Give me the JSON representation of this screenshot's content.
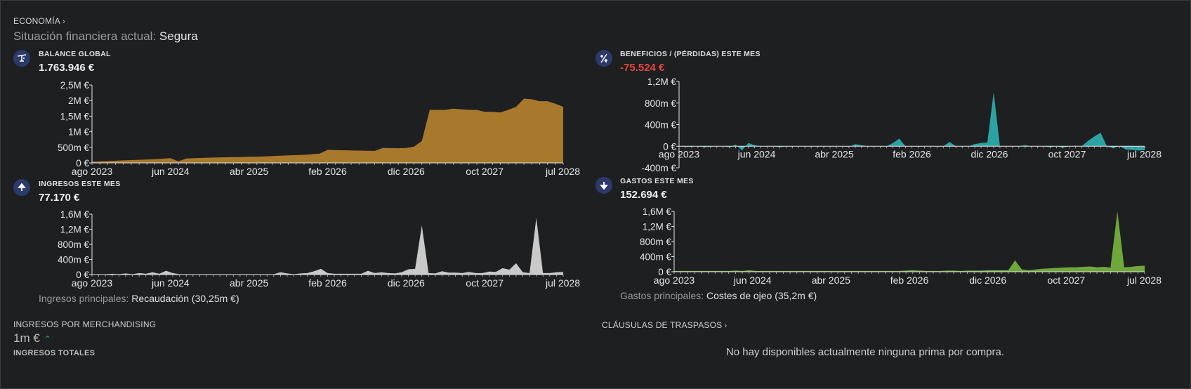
{
  "header": {
    "section_label": "ECONOMÍA",
    "status_label": "Situación financiera actual:",
    "status_value": "Segura"
  },
  "cards": {
    "balance": {
      "title": "BALANCE GLOBAL",
      "value": "1.763.946 €",
      "icon": "balance-scale-icon"
    },
    "profit": {
      "title": "BENEFICIOS / (PÉRDIDAS) ESTE MES",
      "value": "-75.524 €",
      "icon": "plus-minus-icon"
    },
    "income": {
      "title": "INGRESOS ESTE MES",
      "value": "77.170 €",
      "icon": "arrow-up-icon",
      "note_label": "Ingresos principales:",
      "note_value": "Recaudación (30,25m €)"
    },
    "expenses": {
      "title": "GASTOS ESTE MES",
      "value": "152.694 €",
      "icon": "arrow-down-icon",
      "note_label": "Gastos principales:",
      "note_value": "Costes de ojeo (35,2m €)"
    }
  },
  "merchandising": {
    "title": "INGRESOS POR MERCHANDISING",
    "value": "1m €",
    "trend": "up",
    "footer": "INGRESOS TOTALES"
  },
  "transfers": {
    "title": "CLÁUSULAS DE TRASPASOS",
    "empty_message": "No hay disponibles actualmente ninguna prima por compra."
  },
  "colors": {
    "balance": "#a8782c",
    "profit": "#2ba3a3",
    "income": "#c9c9c9",
    "expenses": "#6fa83a",
    "icon_bg": "#2c3a6b",
    "negative": "#e8453c"
  },
  "chart_data": [
    {
      "id": "balance",
      "type": "area",
      "x_range": [
        "2023-08",
        "2028-07"
      ],
      "x_ticks": [
        "ago 2023",
        "jun 2024",
        "abr 2025",
        "feb 2026",
        "dic 2026",
        "oct 2027",
        "jul 2028"
      ],
      "y_ticks": [
        "0 €",
        "500m €",
        "1M €",
        "1,5M €",
        "2M €",
        "2,5M €"
      ],
      "ylim": [
        0,
        2500000
      ],
      "values": [
        40000,
        50000,
        60000,
        70000,
        80000,
        90000,
        100000,
        110000,
        120000,
        135000,
        150000,
        50000,
        140000,
        150000,
        160000,
        170000,
        175000,
        180000,
        185000,
        190000,
        195000,
        200000,
        210000,
        220000,
        230000,
        240000,
        250000,
        260000,
        280000,
        300000,
        420000,
        410000,
        405000,
        400000,
        395000,
        390000,
        385000,
        480000,
        475000,
        470000,
        480000,
        520000,
        700000,
        1700000,
        1700000,
        1700000,
        1740000,
        1720000,
        1700000,
        1700000,
        1640000,
        1640000,
        1620000,
        1700000,
        1800000,
        2060000,
        2040000,
        1980000,
        1980000,
        1900000,
        1800000
      ]
    },
    {
      "id": "profit",
      "type": "area",
      "x_range": [
        "2023-08",
        "2028-07"
      ],
      "x_ticks": [
        "ago 2023",
        "jun 2024",
        "abr 2025",
        "feb 2026",
        "dic 2026",
        "oct 2027",
        "jul 2028"
      ],
      "y_ticks": [
        "-400m €",
        "0 €",
        "400m €",
        "800m €",
        "1,2M €"
      ],
      "ylim": [
        -400000,
        1200000
      ],
      "values": [
        0,
        -10000,
        -10000,
        0,
        -20000,
        -10000,
        0,
        0,
        -20000,
        30000,
        -80000,
        60000,
        20000,
        0,
        0,
        0,
        -20000,
        0,
        0,
        0,
        0,
        0,
        0,
        0,
        0,
        0,
        0,
        -10000,
        40000,
        20000,
        0,
        0,
        0,
        0,
        60000,
        140000,
        0,
        0,
        -10000,
        0,
        0,
        0,
        0,
        80000,
        0,
        0,
        0,
        40000,
        60000,
        70000,
        1000000,
        0,
        0,
        0,
        0,
        20000,
        0,
        0,
        0,
        -20000,
        0,
        -30000,
        0,
        10000,
        0,
        100000,
        180000,
        250000,
        0,
        -40000,
        0,
        -60000,
        -70000,
        -80000,
        -75000
      ]
    },
    {
      "id": "income",
      "type": "area",
      "x_range": [
        "2023-08",
        "2028-07"
      ],
      "x_ticks": [
        "ago 2023",
        "jun 2024",
        "abr 2025",
        "feb 2026",
        "dic 2026",
        "oct 2027",
        "jul 2028"
      ],
      "y_ticks": [
        "0 €",
        "400m €",
        "800m €",
        "1,2M €",
        "1,6M €"
      ],
      "ylim": [
        0,
        1600000
      ],
      "values": [
        10000,
        10000,
        10000,
        20000,
        10000,
        30000,
        10000,
        40000,
        20000,
        60000,
        20000,
        100000,
        40000,
        10000,
        10000,
        10000,
        10000,
        10000,
        10000,
        10000,
        10000,
        10000,
        10000,
        10000,
        10000,
        10000,
        10000,
        10000,
        60000,
        30000,
        10000,
        30000,
        40000,
        90000,
        150000,
        40000,
        20000,
        20000,
        20000,
        20000,
        20000,
        100000,
        40000,
        60000,
        40000,
        30000,
        60000,
        140000,
        150000,
        1300000,
        40000,
        30000,
        90000,
        50000,
        50000,
        40000,
        70000,
        40000,
        40000,
        80000,
        70000,
        170000,
        130000,
        300000,
        60000,
        40000,
        1500000,
        40000,
        40000,
        60000,
        70000
      ]
    },
    {
      "id": "expenses",
      "type": "area",
      "x_range": [
        "2023-08",
        "2028-07"
      ],
      "x_ticks": [
        "ago 2023",
        "jun 2024",
        "abr 2025",
        "feb 2026",
        "dic 2026",
        "oct 2027",
        "jul 2028"
      ],
      "y_ticks": [
        "0 €",
        "400m €",
        "800m €",
        "1,2M €",
        "1,6M €"
      ],
      "ylim": [
        0,
        1600000
      ],
      "values": [
        20000,
        20000,
        20000,
        20000,
        20000,
        20000,
        20000,
        20000,
        20000,
        30000,
        20000,
        40000,
        20000,
        20000,
        20000,
        20000,
        20000,
        20000,
        20000,
        20000,
        20000,
        20000,
        20000,
        20000,
        20000,
        20000,
        20000,
        20000,
        20000,
        20000,
        20000,
        20000,
        20000,
        20000,
        30000,
        40000,
        30000,
        20000,
        20000,
        20000,
        30000,
        30000,
        20000,
        30000,
        30000,
        30000,
        40000,
        40000,
        40000,
        40000,
        300000,
        60000,
        40000,
        60000,
        80000,
        90000,
        100000,
        110000,
        120000,
        120000,
        130000,
        140000,
        120000,
        130000,
        110000,
        1600000,
        120000,
        130000,
        150000,
        160000
      ]
    }
  ]
}
